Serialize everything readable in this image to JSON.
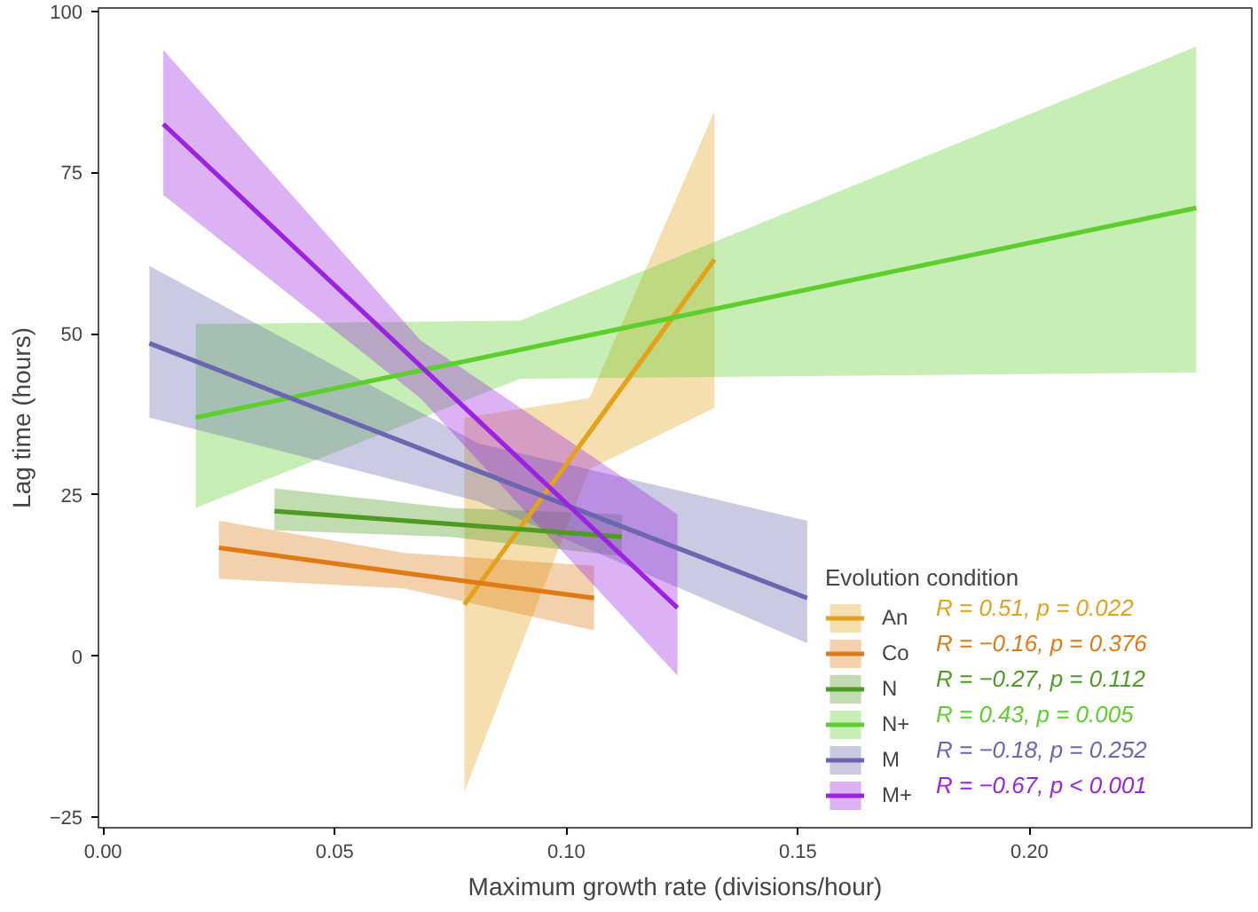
{
  "chart_data": {
    "type": "line",
    "xlabel": "Maximum growth rate (divisions/hour)",
    "ylabel": "Lag time (hours)",
    "legend_title": "Evolution condition",
    "legend": "bottom right",
    "grid": false,
    "xlim": [
      -0.001,
      0.248
    ],
    "ylim": [
      -26.6,
      100.5
    ],
    "xticks": [
      {
        "value": 0,
        "label": "0.00"
      },
      0.05,
      {
        "value": 0.1,
        "label": "0.10"
      },
      0.15,
      {
        "value": 0.2,
        "label": "0.20"
      }
    ],
    "yticks": [
      -25,
      0,
      25,
      50,
      75,
      100
    ],
    "series": [
      {
        "name": "An",
        "color": "#e3a21a",
        "x": [
          0.078,
          0.105,
          0.132
        ],
        "values": [
          8,
          34.7,
          61.5
        ],
        "lower": [
          -21,
          29,
          38.5
        ],
        "upper": [
          37,
          40,
          84.5
        ]
      },
      {
        "name": "Co",
        "color": "#e07a14",
        "x": [
          0.025,
          0.065,
          0.106
        ],
        "values": [
          16.8,
          12.9,
          9
        ],
        "lower": [
          12,
          10.5,
          4
        ],
        "upper": [
          21,
          16,
          14
        ]
      },
      {
        "name": "N",
        "color": "#4f9a23",
        "x": [
          0.037,
          0.075,
          0.112
        ],
        "values": [
          22.5,
          20.5,
          18.5
        ],
        "lower": [
          19.5,
          18.5,
          15.5
        ],
        "upper": [
          26,
          23,
          22
        ]
      },
      {
        "name": "N+",
        "color": "#5ccf2c",
        "x": [
          0.02,
          0.09,
          0.236
        ],
        "values": [
          37,
          47.5,
          69.5
        ],
        "lower": [
          23,
          43,
          44
        ],
        "upper": [
          51.5,
          52,
          94.5
        ]
      },
      {
        "name": "M",
        "color": "#6b66b0",
        "x": [
          0.01,
          0.081,
          0.152
        ],
        "values": [
          48.5,
          28.7,
          9
        ],
        "lower": [
          37,
          24,
          2
        ],
        "upper": [
          60.5,
          33,
          21
        ]
      },
      {
        "name": "M+",
        "color": "#9b22e3",
        "x": [
          0.013,
          0.0685,
          0.124
        ],
        "values": [
          82.5,
          45,
          7.5
        ],
        "lower": [
          71.5,
          40,
          -3
        ],
        "upper": [
          94,
          49,
          22
        ]
      }
    ],
    "annotations": [
      "R = 0.51, p = 0.022",
      "R = −0.16, p = 0.376",
      "R = −0.27, p = 0.112",
      "R = 0.43, p = 0.005",
      "R = −0.18, p = 0.252",
      "R = −0.67, p < 0.001"
    ]
  }
}
